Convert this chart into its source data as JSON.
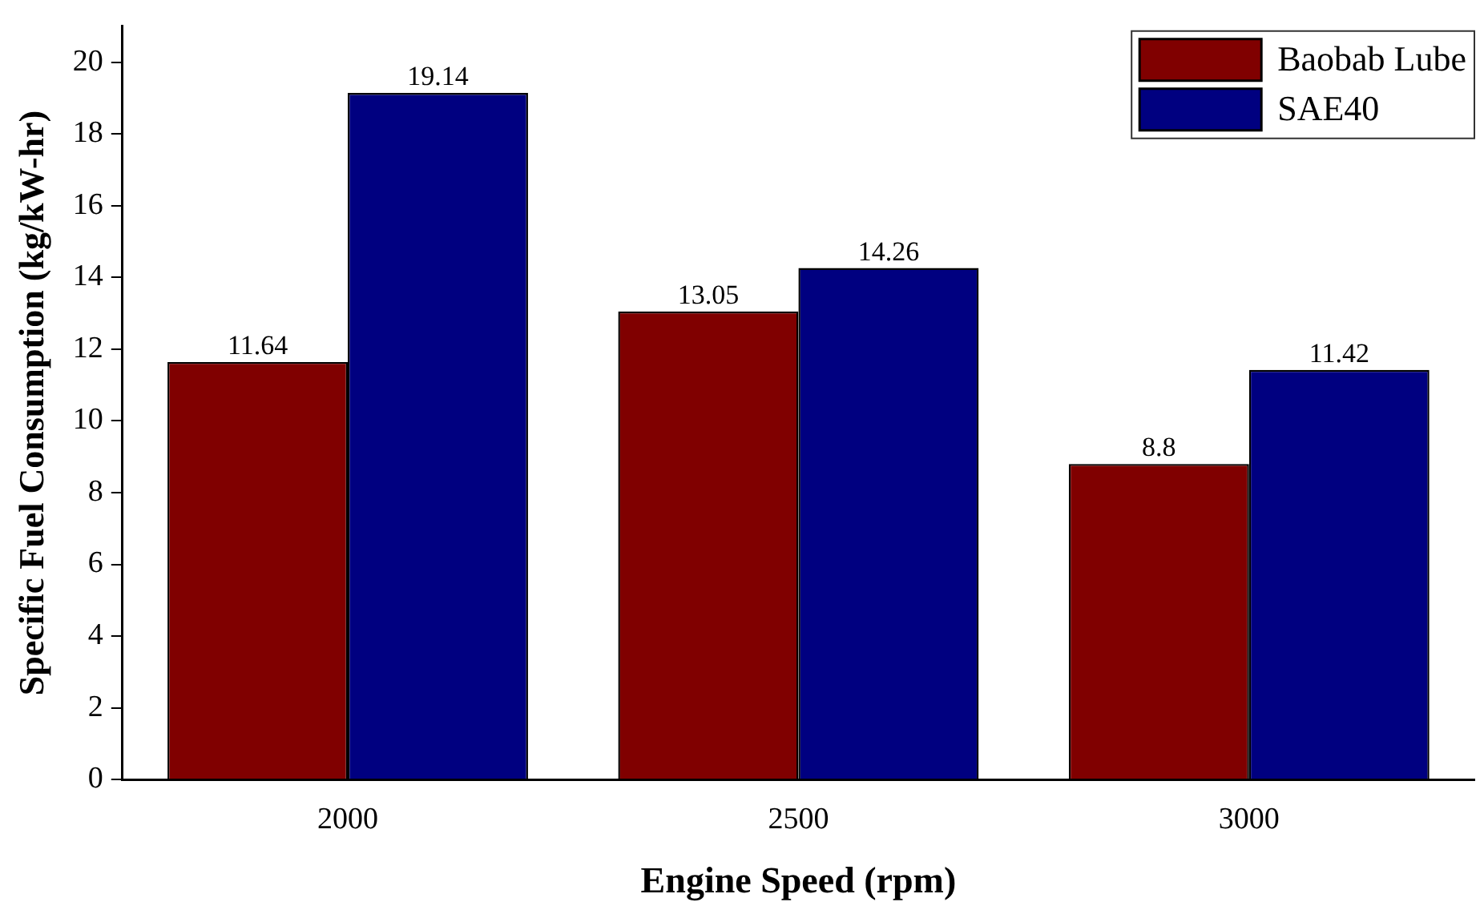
{
  "chart_data": {
    "type": "bar",
    "xlabel": "Engine Speed (rpm)",
    "ylabel": "Specific Fuel Consumption (kg/kW-hr)",
    "categories": [
      "2000",
      "2500",
      "3000"
    ],
    "series": [
      {
        "name": "Baobab Lube",
        "color": "#800000",
        "values": [
          11.64,
          13.05,
          8.8
        ]
      },
      {
        "name": "SAE40",
        "color": "#000080",
        "values": [
          19.14,
          14.26,
          11.42
        ]
      }
    ],
    "ylim": [
      0,
      21
    ],
    "yticks": [
      0,
      2,
      4,
      6,
      8,
      10,
      12,
      14,
      16,
      18,
      20
    ],
    "grid": false,
    "legend": "top right",
    "data_labels": true
  }
}
